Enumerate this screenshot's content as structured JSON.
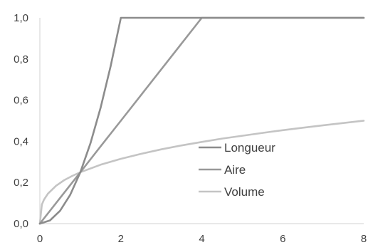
{
  "chart_data": {
    "type": "line",
    "title": "",
    "xlabel": "",
    "ylabel": "",
    "xlim": [
      0,
      8
    ],
    "ylim": [
      0,
      1
    ],
    "xticks": [
      0,
      2,
      4,
      6,
      8
    ],
    "xtick_labels": [
      "0",
      "2",
      "4",
      "6",
      "8"
    ],
    "yticks": [
      0,
      0.2,
      0.4,
      0.6,
      0.8,
      1.0
    ],
    "ytick_labels": [
      "0,0",
      "0,2",
      "0,4",
      "0,6",
      "0,8",
      "1,0"
    ],
    "grid": false,
    "legend_position": "right",
    "series": [
      {
        "name": "Longueur",
        "color": "#8c8c8c",
        "x": [
          0,
          0.25,
          0.5,
          0.75,
          1.0,
          1.25,
          1.5,
          1.75,
          2.0,
          8.0
        ],
        "y": [
          0,
          0.0156,
          0.0625,
          0.1406,
          0.25,
          0.3906,
          0.5625,
          0.7656,
          1.0,
          1.0
        ]
      },
      {
        "name": "Aire",
        "color": "#999999",
        "x": [
          0,
          0.5,
          1.0,
          1.5,
          2.0,
          2.5,
          3.0,
          3.5,
          4.0,
          8.0
        ],
        "y": [
          0,
          0.125,
          0.25,
          0.375,
          0.5,
          0.625,
          0.75,
          0.875,
          1.0,
          1.0
        ]
      },
      {
        "name": "Volume",
        "color": "#c4c4c4",
        "x": [
          0,
          0.05,
          0.1,
          0.2,
          0.4,
          0.6,
          0.8,
          1.0,
          1.5,
          2.0,
          2.5,
          3.0,
          3.5,
          4.0,
          4.5,
          5.0,
          5.5,
          6.0,
          6.5,
          7.0,
          7.5,
          8.0
        ],
        "y": [
          0,
          0.092,
          0.116,
          0.146,
          0.184,
          0.211,
          0.232,
          0.25,
          0.286,
          0.315,
          0.339,
          0.361,
          0.38,
          0.397,
          0.413,
          0.427,
          0.441,
          0.454,
          0.466,
          0.478,
          0.489,
          0.5
        ]
      }
    ]
  }
}
